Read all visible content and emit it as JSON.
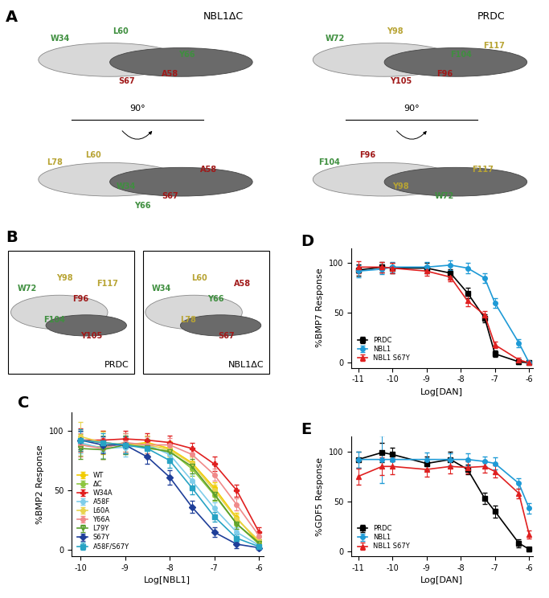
{
  "structures": [
    {
      "label": "A",
      "rotation": "90°",
      "views": [
        {
          "name": "NBL1ΔC",
          "top": [
            {
              "name": "W34",
              "color": "#3f8f3f"
            },
            {
              "name": "L60",
              "color": "#3f8f3f"
            },
            {
              "name": "A58",
              "color": "#a01818"
            },
            {
              "name": "Y66",
              "color": "#3f8f3f"
            },
            {
              "name": "S67",
              "color": "#a01818"
            }
          ],
          "bottom": [
            {
              "name": "L78",
              "color": "#b8a434"
            },
            {
              "name": "L60",
              "color": "#b8a434"
            },
            {
              "name": "W34",
              "color": "#3f8f3f"
            },
            {
              "name": "S67",
              "color": "#a01818"
            },
            {
              "name": "A58",
              "color": "#a01818"
            },
            {
              "name": "Y66",
              "color": "#3f8f3f"
            }
          ]
        },
        {
          "name": "PRDC",
          "top": [
            {
              "name": "W72",
              "color": "#3f8f3f"
            },
            {
              "name": "Y98",
              "color": "#b8a434"
            },
            {
              "name": "F96",
              "color": "#a01818"
            },
            {
              "name": "F104",
              "color": "#3f8f3f"
            },
            {
              "name": "Y105",
              "color": "#a01818"
            },
            {
              "name": "F117",
              "color": "#b8a434"
            }
          ],
          "bottom": [
            {
              "name": "F104",
              "color": "#3f8f3f"
            },
            {
              "name": "F96",
              "color": "#a01818"
            },
            {
              "name": "Y98",
              "color": "#b8a434"
            },
            {
              "name": "W72",
              "color": "#3f8f3f"
            },
            {
              "name": "F117",
              "color": "#b8a434"
            }
          ]
        }
      ]
    },
    {
      "label": "B",
      "views": [
        {
          "name": "PRDC",
          "residues": [
            {
              "name": "W72",
              "color": "#3f8f3f"
            },
            {
              "name": "Y98",
              "color": "#b8a434"
            },
            {
              "name": "F96",
              "color": "#a01818"
            },
            {
              "name": "F117",
              "color": "#b8a434"
            },
            {
              "name": "F104",
              "color": "#3f8f3f"
            },
            {
              "name": "Y105",
              "color": "#a01818"
            }
          ]
        },
        {
          "name": "NBL1ΔC",
          "residues": [
            {
              "name": "W34",
              "color": "#3f8f3f"
            },
            {
              "name": "L60",
              "color": "#b8a434"
            },
            {
              "name": "Y66",
              "color": "#3f8f3f"
            },
            {
              "name": "A58",
              "color": "#a01818"
            },
            {
              "name": "L78",
              "color": "#b8a434"
            },
            {
              "name": "S67",
              "color": "#a01818"
            }
          ]
        }
      ]
    }
  ],
  "chart_data": [
    {
      "label": "C",
      "type": "line",
      "x_label": "Log[NBL1]",
      "y_label": "%BMP2 Response",
      "x": [
        -10,
        -9.5,
        -9,
        -8.5,
        -8,
        -7.5,
        -7,
        -6.5,
        -6
      ],
      "xlim": [
        -10.2,
        -5.9
      ],
      "xticks": [
        -10,
        -9,
        -8,
        -7,
        -6
      ],
      "ylim": [
        -5,
        115
      ],
      "yticks": [
        0,
        50,
        100
      ],
      "legend": "lower left",
      "series": [
        {
          "name": "WT",
          "color": "#f2cc00",
          "marker": "circle",
          "values": [
            92,
            90,
            88,
            90,
            85,
            73,
            52,
            27,
            6
          ],
          "errors": [
            8,
            10,
            7,
            6,
            6,
            5,
            5,
            4,
            3
          ]
        },
        {
          "name": "ΔC",
          "color": "#8dc63f",
          "marker": "circle",
          "values": [
            88,
            86,
            90,
            85,
            83,
            68,
            46,
            22,
            5
          ],
          "errors": [
            9,
            10,
            8,
            7,
            6,
            6,
            5,
            4,
            3
          ]
        },
        {
          "name": "W34A",
          "color": "#e02020",
          "marker": "plus",
          "values": [
            92,
            92,
            93,
            92,
            90,
            85,
            72,
            50,
            15
          ],
          "errors": [
            10,
            8,
            7,
            6,
            6,
            5,
            6,
            5,
            4
          ]
        },
        {
          "name": "A58F",
          "color": "#7fcdea",
          "marker": "circle",
          "values": [
            90,
            85,
            86,
            88,
            80,
            58,
            35,
            15,
            4
          ],
          "errors": [
            9,
            8,
            8,
            7,
            6,
            6,
            5,
            4,
            3
          ]
        },
        {
          "name": "L60A",
          "color": "#e8d44d",
          "marker": "circle",
          "values": [
            95,
            90,
            88,
            88,
            84,
            72,
            50,
            26,
            8
          ],
          "errors": [
            12,
            9,
            8,
            7,
            6,
            6,
            5,
            4,
            3
          ]
        },
        {
          "name": "Y66A",
          "color": "#f08a8a",
          "marker": "circle",
          "values": [
            88,
            85,
            90,
            88,
            88,
            80,
            63,
            38,
            12
          ],
          "errors": [
            10,
            9,
            8,
            7,
            6,
            6,
            5,
            5,
            3
          ]
        },
        {
          "name": "L79Y",
          "color": "#5a9e2c",
          "marker": "open_triangle_down",
          "values": [
            85,
            84,
            88,
            86,
            82,
            70,
            47,
            22,
            6
          ],
          "errors": [
            9,
            8,
            8,
            7,
            6,
            6,
            5,
            4,
            3
          ]
        },
        {
          "name": "S67Y",
          "color": "#1f3f99",
          "marker": "diamond",
          "values": [
            92,
            88,
            88,
            78,
            61,
            36,
            15,
            5,
            2
          ],
          "errors": [
            8,
            7,
            7,
            6,
            6,
            5,
            4,
            3,
            2
          ]
        },
        {
          "name": "A58F/S67Y",
          "color": "#27a3c4",
          "marker": "square",
          "values": [
            92,
            90,
            88,
            85,
            75,
            52,
            28,
            10,
            3
          ],
          "errors": [
            9,
            8,
            7,
            6,
            6,
            5,
            4,
            3,
            2
          ]
        }
      ]
    },
    {
      "label": "D",
      "type": "line",
      "x_label": "Log[DAN]",
      "y_label": "%BMP7 Response",
      "x": [
        -11,
        -10.3,
        -10,
        -9,
        -8.3,
        -7.8,
        -7.3,
        -7,
        -6.3,
        -6
      ],
      "xlim": [
        -11.2,
        -5.9
      ],
      "xticks": [
        -11,
        -10,
        -9,
        -8,
        -7,
        -6
      ],
      "ylim": [
        -5,
        115
      ],
      "yticks": [
        0,
        50,
        100
      ],
      "legend": "lower left",
      "series": [
        {
          "name": "PRDC",
          "color": "#000000",
          "marker": "square",
          "values": [
            93,
            96,
            95,
            95,
            90,
            70,
            45,
            9,
            1,
            0
          ],
          "errors": [
            6,
            5,
            5,
            5,
            4,
            5,
            4,
            3,
            2,
            1
          ]
        },
        {
          "name": "NBL1",
          "color": "#1e9ad6",
          "marker": "circle",
          "values": [
            92,
            94,
            96,
            96,
            98,
            95,
            85,
            60,
            20,
            0
          ],
          "errors": [
            6,
            5,
            5,
            5,
            5,
            5,
            5,
            5,
            4,
            1
          ]
        },
        {
          "name": "NBL1 S67Y",
          "color": "#e02020",
          "marker": "triangle",
          "values": [
            96,
            96,
            95,
            92,
            86,
            62,
            48,
            18,
            3,
            0
          ],
          "errors": [
            6,
            5,
            5,
            5,
            4,
            5,
            4,
            3,
            2,
            1
          ]
        }
      ]
    },
    {
      "label": "E",
      "type": "line",
      "x_label": "Log[DAN]",
      "y_label": "%GDF5 Response",
      "x": [
        -11,
        -10.3,
        -10,
        -9,
        -8.3,
        -7.8,
        -7.3,
        -7,
        -6.3,
        -6
      ],
      "xlim": [
        -11.2,
        -5.9
      ],
      "xticks": [
        -11,
        -10,
        -9,
        -8,
        -7,
        -6
      ],
      "ylim": [
        -5,
        115
      ],
      "yticks": [
        0,
        50,
        100
      ],
      "legend": "lower left",
      "series": [
        {
          "name": "PRDC",
          "color": "#000000",
          "marker": "square",
          "values": [
            92,
            99,
            97,
            88,
            92,
            82,
            53,
            40,
            8,
            2
          ],
          "errors": [
            8,
            10,
            7,
            7,
            8,
            5,
            6,
            6,
            4,
            2
          ]
        },
        {
          "name": "NBL1",
          "color": "#1e9ad6",
          "marker": "circle",
          "values": [
            92,
            92,
            92,
            92,
            92,
            92,
            90,
            88,
            68,
            43
          ],
          "errors": [
            8,
            24,
            7,
            7,
            6,
            6,
            5,
            6,
            5,
            5
          ]
        },
        {
          "name": "NBL1 S67Y",
          "color": "#e02020",
          "marker": "triangle",
          "values": [
            75,
            85,
            85,
            82,
            85,
            84,
            85,
            80,
            58,
            17
          ],
          "errors": [
            8,
            9,
            8,
            7,
            7,
            6,
            6,
            6,
            5,
            4
          ]
        }
      ]
    }
  ]
}
